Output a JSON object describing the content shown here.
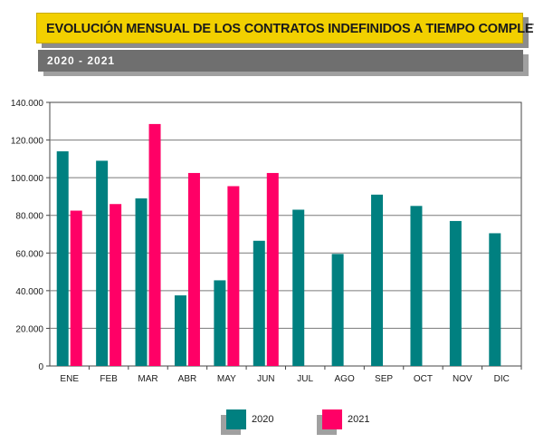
{
  "header": {
    "title": "EVOLUCIÓN MENSUAL DE LOS CONTRATOS INDEFINIDOS A TIEMPO COMPLETO",
    "subtitle": "2020 - 2021"
  },
  "colors": {
    "series_2020": "#008080",
    "series_2021": "#ff0066",
    "title_bg": "#f2d000",
    "subtitle_bg": "#6f6f6f"
  },
  "chart_data": {
    "type": "bar",
    "title": "EVOLUCIÓN MENSUAL DE LOS CONTRATOS INDEFINIDOS A TIEMPO COMPLETO",
    "subtitle": "2020 - 2021",
    "xlabel": "",
    "ylabel": "",
    "ylim": [
      0,
      140000
    ],
    "y_ticks": [
      "0",
      "20.000",
      "40.000",
      "60.000",
      "80.000",
      "100.000",
      "120.000",
      "140.000"
    ],
    "categories": [
      "ENE",
      "FEB",
      "MAR",
      "ABR",
      "MAY",
      "JUN",
      "JUL",
      "AGO",
      "SEP",
      "OCT",
      "NOV",
      "DIC"
    ],
    "series": [
      {
        "name": "2020",
        "values": [
          114000,
          109000,
          89000,
          37500,
          45500,
          66500,
          83000,
          59500,
          91000,
          85000,
          77000,
          70500
        ]
      },
      {
        "name": "2021",
        "values": [
          82500,
          86000,
          128500,
          102500,
          95500,
          102500,
          null,
          null,
          null,
          null,
          null,
          null
        ]
      }
    ],
    "grid": true,
    "legend_position": "bottom"
  }
}
